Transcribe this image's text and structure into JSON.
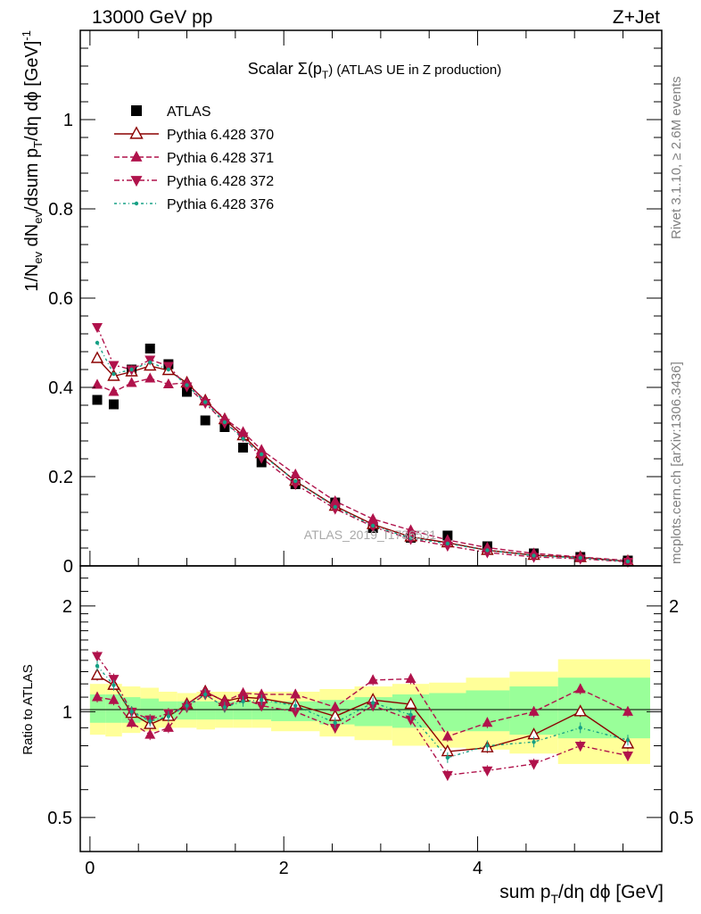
{
  "header": {
    "left": "13000 GeV pp",
    "right": "Z+Jet"
  },
  "side": {
    "rivet": "Rivet 3.1.10, ≥ 2.6M events",
    "mcplots": "mcplots.cern.ch [arXiv:1306.3436]"
  },
  "chart_data": [
    {
      "type": "scatter",
      "panel": "main",
      "title": "Scalar Σ(p_T) (ATLAS UE in Z production)",
      "title_text": "Scalar Σ(p",
      "title_sub": "T",
      "title_after": ") (ATLAS UE in Z production)",
      "ylabel_parts": {
        "a": "1/N",
        "a_sub": "ev",
        "b": " dN",
        "b_sub": "ev",
        "c": "/dsum p",
        "c_sub": "T",
        "d": "/dη dϕ  [GeV]",
        "d_sup": "-1"
      },
      "ylim": [
        0,
        1.2
      ],
      "xlim": [
        -0.1,
        5.9
      ],
      "yticks": [
        {
          "v": 0,
          "label": "0"
        },
        {
          "v": 0.2,
          "label": "0.2"
        },
        {
          "v": 0.4,
          "label": "0.4"
        },
        {
          "v": 0.6,
          "label": "0.6"
        },
        {
          "v": 0.8,
          "label": "0.8"
        },
        {
          "v": 1.0,
          "label": "1"
        }
      ],
      "watermark": "ATLAS_2019_I1736531",
      "legend_position": "top-left",
      "x": [
        0.075,
        0.245,
        0.43,
        0.62,
        0.81,
        1.0,
        1.19,
        1.39,
        1.58,
        1.77,
        2.12,
        2.53,
        2.92,
        3.31,
        3.69,
        4.1,
        4.58,
        5.06,
        5.55
      ],
      "series": [
        {
          "name": "ATLAS",
          "marker": "square",
          "color": "#000000",
          "dash": "",
          "values": [
            0.372,
            0.362,
            0.44,
            0.487,
            0.452,
            0.39,
            0.326,
            0.311,
            0.265,
            0.232,
            0.183,
            0.142,
            0.085,
            0.063,
            0.068,
            0.044,
            0.028,
            0.02,
            0.012
          ]
        },
        {
          "name": "Pythia 6.428 370",
          "marker": "tri-up-open",
          "color": "#8b0000",
          "dash": "",
          "values": [
            0.465,
            0.425,
            0.435,
            0.448,
            0.438,
            0.41,
            0.37,
            0.328,
            0.292,
            0.252,
            0.19,
            0.134,
            0.093,
            0.065,
            0.052,
            0.035,
            0.024,
            0.019,
            0.01
          ]
        },
        {
          "name": "Pythia 6.428 371",
          "marker": "tri-up",
          "color": "#b0124b",
          "dash": "6,3",
          "values": [
            0.406,
            0.39,
            0.41,
            0.42,
            0.407,
            0.41,
            0.37,
            0.33,
            0.3,
            0.26,
            0.205,
            0.145,
            0.105,
            0.08,
            0.058,
            0.041,
            0.028,
            0.02,
            0.012
          ]
        },
        {
          "name": "Pythia 6.428 372",
          "marker": "tri-down",
          "color": "#b0124b",
          "dash": "6,3,2,3",
          "values": [
            0.535,
            0.45,
            0.44,
            0.462,
            0.448,
            0.402,
            0.365,
            0.32,
            0.29,
            0.242,
            0.183,
            0.128,
            0.088,
            0.06,
            0.045,
            0.03,
            0.02,
            0.016,
            0.009
          ]
        },
        {
          "name": "Pythia 6.428 376",
          "marker": "dot",
          "color": "#16a085",
          "dash": "3,3,1,3",
          "values": [
            0.5,
            0.43,
            0.44,
            0.456,
            0.44,
            0.405,
            0.367,
            0.322,
            0.285,
            0.25,
            0.19,
            0.132,
            0.09,
            0.062,
            0.05,
            0.035,
            0.023,
            0.018,
            0.01
          ]
        }
      ]
    },
    {
      "type": "line",
      "panel": "ratio",
      "ylabel": "Ratio to ATLAS",
      "xlabel_parts": {
        "a": "sum p",
        "a_sub": "T",
        "b": "/dη dϕ [GeV]"
      },
      "scale": "log",
      "ylim": [
        0.4,
        2.6
      ],
      "xlim": [
        -0.1,
        5.9
      ],
      "yticks_left": [
        {
          "v": 0.5,
          "label": "0.5"
        },
        {
          "v": 1,
          "label": "1"
        },
        {
          "v": 2,
          "label": "2"
        }
      ],
      "xticks": [
        {
          "v": 0,
          "label": "0"
        },
        {
          "v": 2,
          "label": "2"
        },
        {
          "v": 4,
          "label": "4"
        }
      ],
      "bands": {
        "edges": [
          0,
          0.16,
          0.33,
          0.52,
          0.71,
          0.9,
          1.1,
          1.29,
          1.48,
          1.67,
          1.87,
          2.37,
          2.73,
          3.12,
          3.5,
          3.88,
          4.33,
          4.83,
          5.78
        ],
        "yellow": [
          [
            0.86,
            1.2
          ],
          [
            0.85,
            1.2
          ],
          [
            0.87,
            1.18
          ],
          [
            0.88,
            1.17
          ],
          [
            0.9,
            1.14
          ],
          [
            0.9,
            1.13
          ],
          [
            0.89,
            1.14
          ],
          [
            0.9,
            1.14
          ],
          [
            0.9,
            1.14
          ],
          [
            0.9,
            1.14
          ],
          [
            0.88,
            1.14
          ],
          [
            0.85,
            1.16
          ],
          [
            0.83,
            1.18
          ],
          [
            0.8,
            1.2
          ],
          [
            0.79,
            1.21
          ],
          [
            0.78,
            1.25
          ],
          [
            0.76,
            1.3
          ],
          [
            0.71,
            1.41
          ]
        ],
        "green": [
          [
            0.93,
            1.12
          ],
          [
            0.93,
            1.12
          ],
          [
            0.93,
            1.1
          ],
          [
            0.94,
            1.09
          ],
          [
            0.95,
            1.07
          ],
          [
            0.95,
            1.07
          ],
          [
            0.95,
            1.07
          ],
          [
            0.95,
            1.07
          ],
          [
            0.95,
            1.07
          ],
          [
            0.95,
            1.07
          ],
          [
            0.94,
            1.07
          ],
          [
            0.92,
            1.08
          ],
          [
            0.91,
            1.1
          ],
          [
            0.9,
            1.12
          ],
          [
            0.88,
            1.13
          ],
          [
            0.88,
            1.15
          ],
          [
            0.86,
            1.18
          ],
          [
            0.84,
            1.25
          ]
        ]
      },
      "x": [
        0.075,
        0.245,
        0.43,
        0.62,
        0.81,
        1.0,
        1.19,
        1.39,
        1.58,
        1.77,
        2.12,
        2.53,
        2.92,
        3.31,
        3.69,
        4.1,
        4.58,
        5.06,
        5.55
      ],
      "series": [
        {
          "marker": "tri-up-open",
          "color": "#8b0000",
          "dash": "",
          "values": [
            1.27,
            1.19,
            0.99,
            0.92,
            0.97,
            1.05,
            1.14,
            1.07,
            1.1,
            1.09,
            1.05,
            0.97,
            1.08,
            1.05,
            0.77,
            0.79,
            0.86,
            1.0,
            0.81
          ]
        },
        {
          "marker": "tri-up",
          "color": "#b0124b",
          "dash": "6,3",
          "values": [
            1.1,
            1.08,
            0.93,
            0.86,
            0.9,
            1.05,
            1.14,
            1.07,
            1.13,
            1.12,
            1.12,
            1.03,
            1.23,
            1.24,
            0.85,
            0.93,
            1.0,
            1.16,
            1.0
          ]
        },
        {
          "marker": "tri-down",
          "color": "#b0124b",
          "dash": "6,3,2,3",
          "values": [
            1.44,
            1.24,
            1.0,
            0.95,
            0.99,
            1.03,
            1.12,
            1.03,
            1.09,
            1.04,
            1.0,
            0.9,
            1.04,
            0.95,
            0.66,
            0.68,
            0.71,
            0.8,
            0.75
          ]
        },
        {
          "marker": "dot",
          "color": "#16a085",
          "dash": "3,3,1,3",
          "values": [
            1.35,
            1.19,
            1.0,
            0.94,
            0.97,
            1.04,
            1.12,
            1.03,
            1.07,
            1.08,
            1.04,
            0.93,
            1.06,
            0.98,
            0.74,
            0.8,
            0.82,
            0.9,
            0.83
          ]
        }
      ]
    }
  ]
}
